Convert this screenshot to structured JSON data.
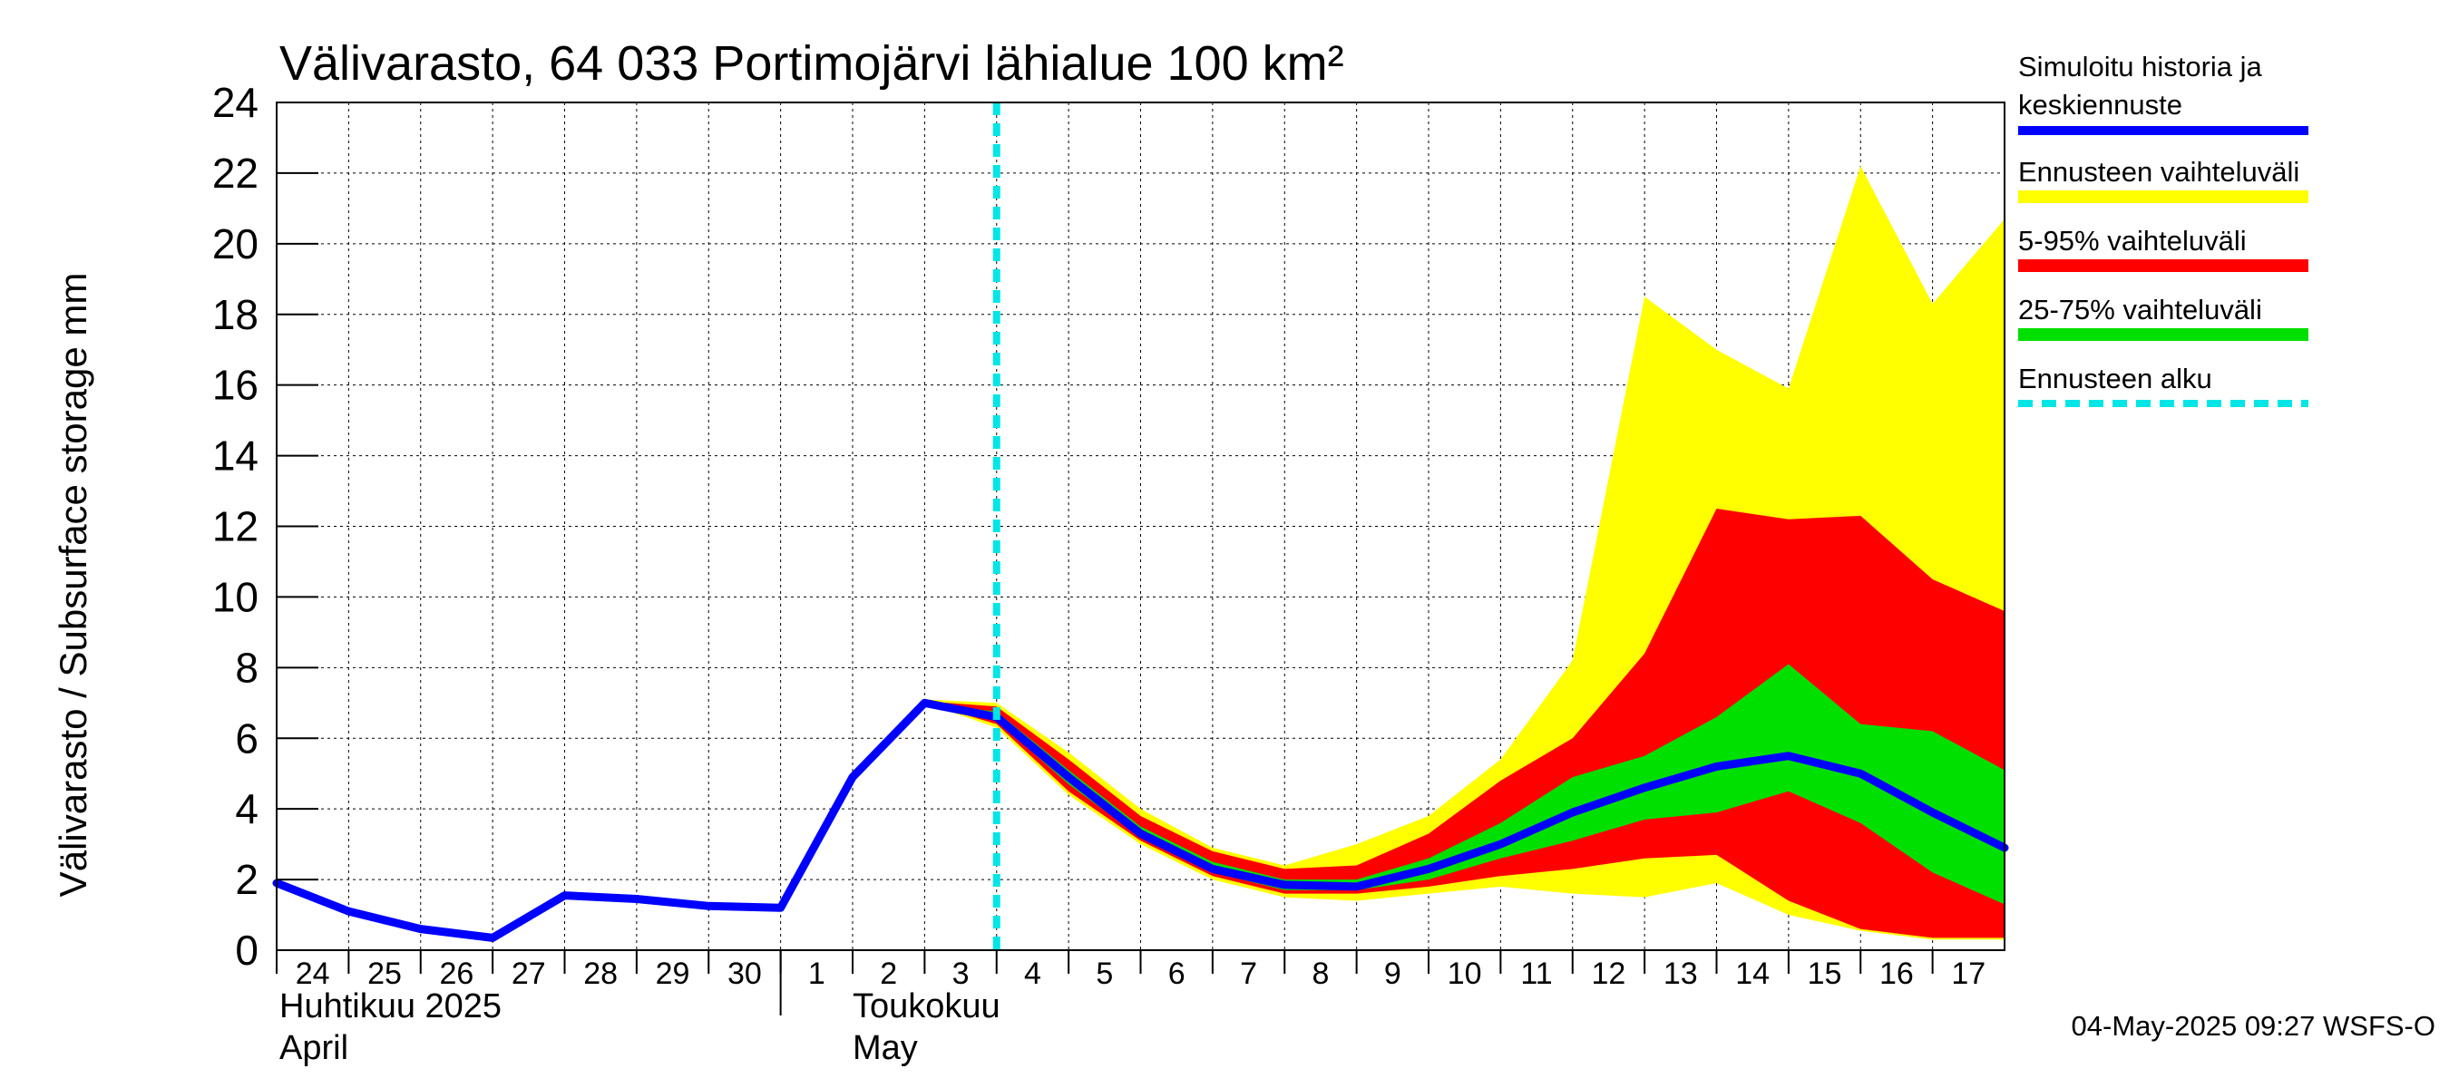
{
  "chart_data": {
    "type": "area",
    "title": "Välivarasto, 64 033 Portimojärvi lähialue 100 km²",
    "ylabel": "Välivarasto / Subsurface storage  mm",
    "ylim": [
      0,
      24
    ],
    "yticks": [
      0,
      2,
      4,
      6,
      8,
      10,
      12,
      14,
      16,
      18,
      20,
      22,
      24
    ],
    "xlim": [
      0,
      24
    ],
    "x_tick_labels": [
      "24",
      "25",
      "26",
      "27",
      "28",
      "29",
      "30",
      "1",
      "2",
      "3",
      "4",
      "5",
      "6",
      "7",
      "8",
      "9",
      "10",
      "11",
      "12",
      "13",
      "14",
      "15",
      "16",
      "17"
    ],
    "month_labels": [
      {
        "line1": "Huhtikuu  2025",
        "line2": "April"
      },
      {
        "line1": "Toukokuu",
        "line2": "May"
      }
    ],
    "forecast_start_x": 10,
    "grid": true,
    "legend_position": "right",
    "colors": {
      "history": "#0000ff",
      "range_full": "#ffff00",
      "range_5_95": "#ff0000",
      "range_25_75": "#00e000",
      "forecast_start": "#00e5e5"
    },
    "series": [
      {
        "name": "Simuloitu historia ja keskiennuste",
        "kind": "line",
        "x": [
          0,
          1,
          2,
          3,
          4,
          5,
          6,
          7,
          8,
          9,
          10,
          11,
          12,
          13,
          14,
          15,
          16,
          17,
          18,
          19,
          20,
          21,
          22,
          23,
          24
        ],
        "y": [
          1.9,
          1.1,
          0.6,
          0.35,
          1.55,
          1.45,
          1.25,
          1.2,
          4.9,
          7.0,
          6.6,
          4.9,
          3.3,
          2.3,
          1.85,
          1.8,
          2.3,
          3.0,
          3.9,
          4.6,
          5.2,
          5.5,
          5.0,
          3.9,
          2.9
        ]
      },
      {
        "name": "Ennusteen vaihteluväli",
        "kind": "band",
        "x": [
          9,
          10,
          11,
          12,
          13,
          14,
          15,
          16,
          17,
          18,
          19,
          20,
          21,
          22,
          23,
          24
        ],
        "upper": [
          7.1,
          7.0,
          5.6,
          4.0,
          2.9,
          2.4,
          3.0,
          3.8,
          5.4,
          8.2,
          18.5,
          17.0,
          15.9,
          22.2,
          18.3,
          20.7
        ],
        "lower": [
          7.0,
          6.3,
          4.4,
          3.0,
          2.0,
          1.5,
          1.4,
          1.6,
          1.8,
          1.6,
          1.5,
          1.9,
          1.0,
          0.55,
          0.3,
          0.3
        ]
      },
      {
        "name": "5-95% vaihteluväli",
        "kind": "band",
        "x": [
          9,
          10,
          11,
          12,
          13,
          14,
          15,
          16,
          17,
          18,
          19,
          20,
          21,
          22,
          23,
          24
        ],
        "upper": [
          7.05,
          6.9,
          5.4,
          3.8,
          2.8,
          2.3,
          2.4,
          3.3,
          4.8,
          6.0,
          8.4,
          12.5,
          12.2,
          12.3,
          10.5,
          9.6
        ],
        "lower": [
          7.0,
          6.4,
          4.5,
          3.1,
          2.1,
          1.6,
          1.6,
          1.8,
          2.1,
          2.3,
          2.6,
          2.7,
          1.4,
          0.6,
          0.35,
          0.35
        ]
      },
      {
        "name": "25-75% vaihteluväli",
        "kind": "band",
        "x": [
          9,
          10,
          11,
          12,
          13,
          14,
          15,
          16,
          17,
          18,
          19,
          20,
          21,
          22,
          23,
          24
        ],
        "upper": [
          7.02,
          6.75,
          5.1,
          3.5,
          2.5,
          2.0,
          2.0,
          2.6,
          3.6,
          4.9,
          5.5,
          6.6,
          8.1,
          6.4,
          6.2,
          5.1
        ],
        "lower": [
          7.0,
          6.5,
          4.7,
          3.2,
          2.2,
          1.7,
          1.7,
          2.0,
          2.6,
          3.1,
          3.7,
          3.9,
          4.5,
          3.6,
          2.2,
          1.3
        ]
      },
      {
        "name": "Ennusteen alku",
        "kind": "vline",
        "x": 10
      }
    ]
  },
  "legend": {
    "history_line1": "Simuloitu historia ja",
    "history_line2": "keskiennuste",
    "full_range": "Ennusteen vaihteluväli",
    "range_5_95": "5-95% vaihteluväli",
    "range_25_75": "25-75% vaihteluväli",
    "forecast_start": "Ennusteen alku"
  },
  "footer": "04-May-2025 09:27 WSFS-O"
}
